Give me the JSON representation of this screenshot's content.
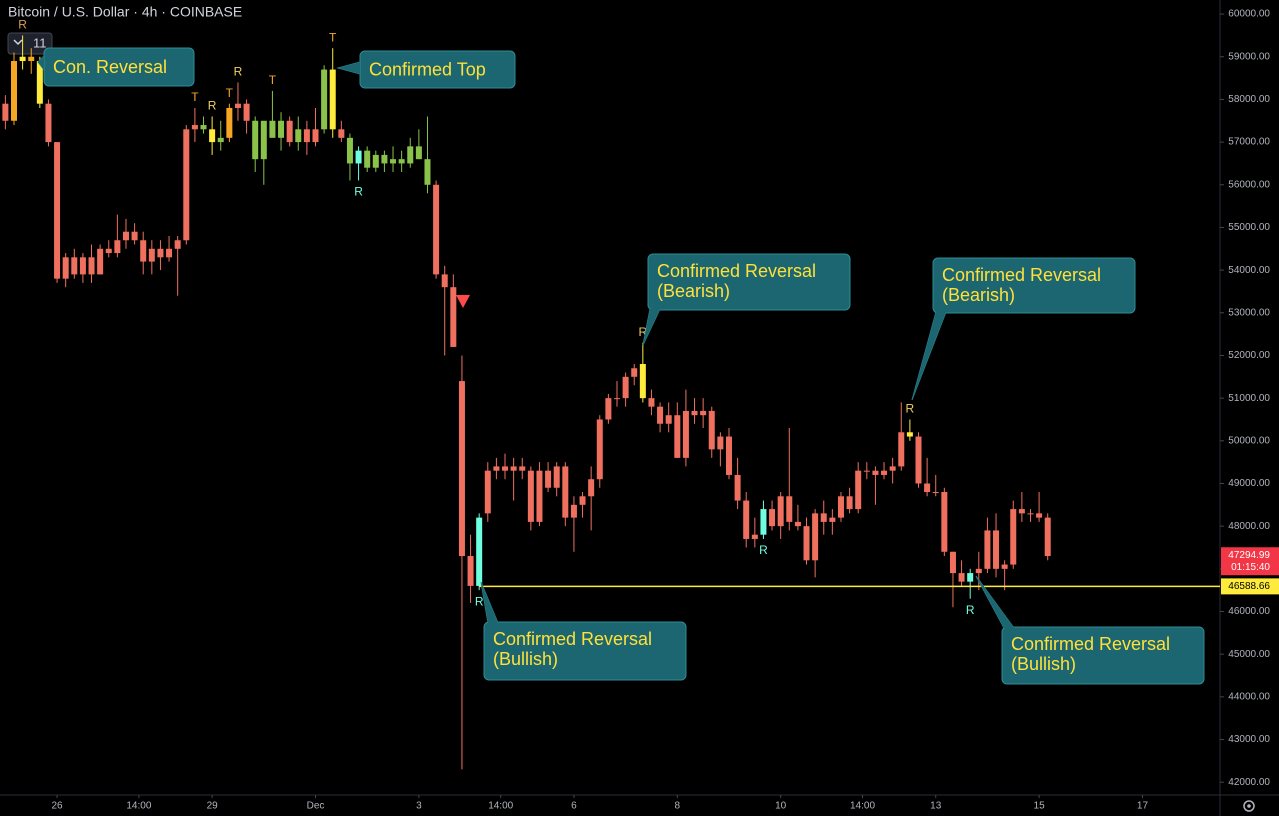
{
  "chart_data": {
    "type": "candlestick",
    "title": "Bitcoin / U.S. Dollar · 4h · COINBASE",
    "indicator_count": "11",
    "x": [
      -24,
      -20,
      -16,
      -12,
      -8,
      -4,
      0,
      4,
      8,
      12,
      16,
      20,
      24,
      28,
      32,
      36,
      40,
      44,
      48,
      52,
      56,
      60,
      64,
      68,
      72,
      76,
      80,
      84,
      88,
      92,
      96,
      100,
      104,
      108,
      112,
      116,
      120,
      124,
      128,
      132,
      136,
      140,
      144,
      148,
      152,
      156,
      160,
      164,
      168,
      172,
      176,
      180,
      184,
      188,
      192,
      196,
      200,
      204,
      208,
      212,
      216,
      220,
      224,
      228,
      232,
      236,
      240,
      244,
      248,
      252,
      256,
      260,
      264,
      268,
      272,
      276,
      280,
      284,
      288,
      292,
      296,
      300,
      304,
      308,
      312,
      316,
      320,
      324,
      328,
      332,
      336,
      340,
      344,
      348,
      352,
      356,
      360,
      364,
      368,
      372,
      376,
      380,
      384,
      388,
      392,
      396,
      400,
      404,
      408,
      412,
      416,
      420,
      424,
      428,
      432,
      436,
      440,
      444,
      448,
      452,
      456,
      460
    ],
    "ohlc": [
      [
        57900,
        58100,
        57300,
        57500
      ],
      [
        57500,
        59100,
        57400,
        58900
      ],
      [
        58900,
        59500,
        58700,
        59000
      ],
      [
        59000,
        59200,
        58600,
        58900
      ],
      [
        58900,
        59000,
        57800,
        57900
      ],
      [
        57900,
        58000,
        56900,
        57000
      ],
      [
        57000,
        57000,
        53700,
        53800
      ],
      [
        53800,
        54400,
        53600,
        54300
      ],
      [
        54300,
        54500,
        53800,
        53900
      ],
      [
        53900,
        54400,
        53700,
        54300
      ],
      [
        54300,
        54600,
        53700,
        53900
      ],
      [
        53900,
        54600,
        53900,
        54500
      ],
      [
        54500,
        54700,
        54300,
        54400
      ],
      [
        54400,
        55300,
        54300,
        54700
      ],
      [
        54700,
        55200,
        54500,
        54900
      ],
      [
        54900,
        55100,
        54600,
        54700
      ],
      [
        54700,
        54900,
        53900,
        54200
      ],
      [
        54200,
        54700,
        53900,
        54500
      ],
      [
        54500,
        54700,
        54000,
        54300
      ],
      [
        54300,
        54800,
        54200,
        54500
      ],
      [
        54500,
        54800,
        53400,
        54700
      ],
      [
        54700,
        57400,
        54600,
        57300
      ],
      [
        57300,
        57800,
        57000,
        57400
      ],
      [
        57400,
        57600,
        57200,
        57300
      ],
      [
        57300,
        57600,
        56700,
        57000
      ],
      [
        57000,
        57500,
        56800,
        57100
      ],
      [
        57100,
        57900,
        57000,
        57800
      ],
      [
        57800,
        58400,
        57500,
        57900
      ],
      [
        57900,
        58000,
        57200,
        57500
      ],
      [
        57500,
        57600,
        56300,
        56600
      ],
      [
        56600,
        57400,
        56000,
        57500
      ],
      [
        57500,
        58200,
        57200,
        57100
      ],
      [
        57100,
        57700,
        56800,
        57500
      ],
      [
        57500,
        57600,
        56900,
        57000
      ],
      [
        57000,
        57600,
        56800,
        57300
      ],
      [
        57300,
        57500,
        56700,
        57000
      ],
      [
        57000,
        57800,
        56900,
        57300
      ],
      [
        57300,
        58800,
        57200,
        58700
      ],
      [
        58700,
        59200,
        57100,
        57300
      ],
      [
        57300,
        57500,
        57000,
        57100
      ],
      [
        57100,
        57200,
        56100,
        56500
      ],
      [
        56500,
        56900,
        56100,
        56800
      ],
      [
        56800,
        56900,
        56300,
        56400
      ],
      [
        56400,
        56800,
        56300,
        56700
      ],
      [
        56700,
        56800,
        56300,
        56500
      ],
      [
        56500,
        56900,
        56300,
        56600
      ],
      [
        56600,
        56800,
        56300,
        56500
      ],
      [
        56500,
        57100,
        56400,
        56900
      ],
      [
        56900,
        57300,
        56600,
        56600
      ],
      [
        56600,
        57600,
        55800,
        56000
      ],
      [
        56000,
        56100,
        53800,
        53900
      ],
      [
        53900,
        54100,
        52000,
        53600
      ],
      [
        53600,
        53900,
        52200,
        52200
      ],
      [
        51400,
        52000,
        42300,
        47300
      ],
      [
        47300,
        47800,
        46200,
        46600
      ],
      [
        46600,
        48300,
        46500,
        48200
      ],
      [
        48300,
        49500,
        48100,
        49300
      ],
      [
        49300,
        49600,
        49100,
        49400
      ],
      [
        49400,
        49700,
        49100,
        49300
      ],
      [
        49300,
        49600,
        48600,
        49400
      ],
      [
        49400,
        49600,
        49100,
        49300
      ],
      [
        49300,
        49400,
        47900,
        48100
      ],
      [
        48100,
        49500,
        48000,
        49300
      ],
      [
        49300,
        49500,
        48800,
        48900
      ],
      [
        48900,
        49500,
        48700,
        49400
      ],
      [
        49400,
        49500,
        48000,
        48200
      ],
      [
        48200,
        48700,
        47400,
        48500
      ],
      [
        48500,
        48800,
        48200,
        48700
      ],
      [
        48700,
        49400,
        47900,
        49100
      ],
      [
        49100,
        50600,
        48900,
        50500
      ],
      [
        50500,
        51100,
        50400,
        51000
      ],
      [
        51000,
        51400,
        50800,
        51000
      ],
      [
        51000,
        51600,
        50800,
        51500
      ],
      [
        51500,
        51800,
        51300,
        51700
      ],
      [
        51800,
        52300,
        50900,
        51000
      ],
      [
        51000,
        51200,
        50600,
        50800
      ],
      [
        50800,
        50900,
        50200,
        50400
      ],
      [
        50400,
        50900,
        50200,
        50600
      ],
      [
        50600,
        50900,
        49600,
        49600
      ],
      [
        49600,
        51200,
        49400,
        50700
      ],
      [
        50700,
        51000,
        50400,
        50600
      ],
      [
        50600,
        51000,
        50300,
        50700
      ],
      [
        50700,
        50800,
        49600,
        49800
      ],
      [
        49800,
        50200,
        49400,
        50100
      ],
      [
        50100,
        50300,
        49100,
        49200
      ],
      [
        49200,
        49600,
        48400,
        48600
      ],
      [
        48600,
        48800,
        47500,
        47700
      ],
      [
        47700,
        48200,
        47500,
        47800
      ],
      [
        47800,
        48600,
        47700,
        48400
      ],
      [
        48400,
        48600,
        47900,
        48000
      ],
      [
        48000,
        48800,
        47700,
        48700
      ],
      [
        48700,
        50300,
        47900,
        48100
      ],
      [
        48100,
        48500,
        47900,
        48000
      ],
      [
        48000,
        48200,
        47100,
        47200
      ],
      [
        47200,
        48400,
        46800,
        48300
      ],
      [
        48300,
        48600,
        47800,
        48100
      ],
      [
        48100,
        48400,
        47800,
        48200
      ],
      [
        48200,
        48800,
        48100,
        48700
      ],
      [
        48700,
        48900,
        48300,
        48400
      ],
      [
        48400,
        49500,
        48300,
        49300
      ],
      [
        49300,
        49500,
        49100,
        49300
      ],
      [
        49300,
        49400,
        48500,
        49200
      ],
      [
        49200,
        49500,
        49100,
        49300
      ],
      [
        49300,
        49600,
        49000,
        49400
      ],
      [
        49400,
        50900,
        49300,
        50200
      ],
      [
        50200,
        50500,
        50000,
        50100
      ],
      [
        50100,
        50200,
        48900,
        49000
      ],
      [
        49000,
        49600,
        48700,
        48800
      ],
      [
        48800,
        49200,
        48700,
        48800
      ],
      [
        48800,
        48900,
        47300,
        47400
      ],
      [
        47400,
        47400,
        46100,
        46900
      ],
      [
        46900,
        47200,
        46600,
        46700
      ],
      [
        46700,
        47000,
        46300,
        46900
      ],
      [
        46900,
        47400,
        46500,
        47000
      ],
      [
        47000,
        48200,
        46900,
        47900
      ],
      [
        47900,
        48300,
        46800,
        47000
      ],
      [
        47000,
        47200,
        46500,
        47100
      ],
      [
        47100,
        48600,
        47000,
        48400
      ],
      [
        48400,
        48800,
        48100,
        48300
      ],
      [
        48300,
        48400,
        48100,
        48300
      ],
      [
        48300,
        48800,
        48100,
        48200
      ],
      [
        48200,
        48300,
        47200,
        47300
      ]
    ],
    "colors": [
      "#f07060",
      "#f5a623",
      "#ffeb3b",
      "#f5a623",
      "#ffeb3b",
      "#f07060",
      "#f07060",
      "#f07060",
      "#f07060",
      "#f07060",
      "#f07060",
      "#f07060",
      "#f07060",
      "#f07060",
      "#f07060",
      "#f07060",
      "#f07060",
      "#f07060",
      "#f07060",
      "#f07060",
      "#f07060",
      "#f07060",
      "#f07060",
      "#8bc34a",
      "#ffeb3b",
      "#8bc34a",
      "#f5a623",
      "#f07060",
      "#f07060",
      "#8bc34a",
      "#8bc34a",
      "#8bc34a",
      "#8bc34a",
      "#f07060",
      "#8bc34a",
      "#f07060",
      "#f07060",
      "#8bc34a",
      "#ffeb3b",
      "#f07060",
      "#8bc34a",
      "#6fffe0",
      "#8bc34a",
      "#8bc34a",
      "#8bc34a",
      "#8bc34a",
      "#8bc34a",
      "#8bc34a",
      "#8bc34a",
      "#8bc34a",
      "#f07060",
      "#f07060",
      "#f07060",
      "#f07060",
      "#f07060",
      "#6fffe0",
      "#f07060",
      "#f07060",
      "#f07060",
      "#f07060",
      "#f07060",
      "#f07060",
      "#f07060",
      "#f07060",
      "#f07060",
      "#f07060",
      "#f07060",
      "#f07060",
      "#f07060",
      "#f07060",
      "#f07060",
      "#f07060",
      "#f07060",
      "#f07060",
      "#ffeb3b",
      "#f07060",
      "#f07060",
      "#f07060",
      "#f07060",
      "#f07060",
      "#f07060",
      "#f07060",
      "#f07060",
      "#f07060",
      "#f07060",
      "#f07060",
      "#f07060",
      "#f07060",
      "#6fffe0",
      "#f07060",
      "#f07060",
      "#f07060",
      "#f07060",
      "#f07060",
      "#f07060",
      "#f07060",
      "#f07060",
      "#f07060",
      "#f07060",
      "#f07060",
      "#f07060",
      "#f07060",
      "#f07060",
      "#f07060",
      "#f07060",
      "#ffeb3b",
      "#f07060",
      "#f07060",
      "#f07060",
      "#f07060",
      "#f07060",
      "#f07060",
      "#6fffe0",
      "#f07060",
      "#f07060",
      "#f07060",
      "#f07060",
      "#f07060",
      "#f07060",
      "#f07060",
      "#f07060",
      "#f07060"
    ],
    "markers": [
      {
        "label": "R",
        "x": -16,
        "position": "above",
        "color": "#d9a050"
      },
      {
        "label": "T",
        "x": 64,
        "position": "above",
        "color": "#f5a623"
      },
      {
        "label": "R",
        "x": 72,
        "position": "above",
        "color": "#f0d060"
      },
      {
        "label": "T",
        "x": 80,
        "position": "above",
        "color": "#f5a623"
      },
      {
        "label": "R",
        "x": 84,
        "position": "above",
        "color": "#f0d060"
      },
      {
        "label": "T",
        "x": 100,
        "position": "above",
        "color": "#f5a623"
      },
      {
        "label": "T",
        "x": 128,
        "position": "above",
        "color": "#f5a623"
      },
      {
        "label": "R",
        "x": 140,
        "position": "below",
        "color": "#6fffe0"
      },
      {
        "label": "R",
        "x": 196,
        "position": "below",
        "color": "#6fffe0"
      },
      {
        "label": "R",
        "x": 272,
        "position": "above",
        "color": "#f0d060"
      },
      {
        "label": "R",
        "x": 328,
        "position": "below",
        "color": "#6fffe0"
      },
      {
        "label": "R",
        "x": 396,
        "position": "above",
        "color": "#f0d060"
      },
      {
        "label": "R",
        "x": 424,
        "position": "below",
        "color": "#6fffe0"
      }
    ],
    "callouts": [
      {
        "lines": [
          "Con. Reversal"
        ]
      },
      {
        "lines": [
          "Confirmed Top"
        ]
      },
      {
        "lines": [
          "Confirmed Reversal",
          "(Bearish)"
        ]
      },
      {
        "lines": [
          "Confirmed Reversal",
          "(Bearish)"
        ]
      },
      {
        "lines": [
          "Confirmed Reversal",
          "(Bullish)"
        ]
      },
      {
        "lines": [
          "Confirmed Reversal",
          "(Bullish)"
        ]
      }
    ],
    "hline": {
      "value": 46588.66,
      "from_x": 196,
      "color": "#ffeb3b"
    },
    "last_price": 47294.99,
    "countdown": "01:15:40",
    "ylim": [
      41700,
      60330
    ],
    "yticks": [
      {
        "value": 42000,
        "label": "42000.00"
      },
      {
        "value": 43000,
        "label": "43000.00"
      },
      {
        "value": 44000,
        "label": "44000.00"
      },
      {
        "value": 45000,
        "label": "45000.00"
      },
      {
        "value": 46000,
        "label": "46000.00"
      },
      {
        "value": 47000,
        "label": "47000.00"
      },
      {
        "value": 48000,
        "label": "48000.00"
      },
      {
        "value": 49000,
        "label": "49000.00"
      },
      {
        "value": 50000,
        "label": "50000.00"
      },
      {
        "value": 51000,
        "label": "51000.00"
      },
      {
        "value": 52000,
        "label": "52000.00"
      },
      {
        "value": 53000,
        "label": "53000.00"
      },
      {
        "value": 54000,
        "label": "54000.00"
      },
      {
        "value": 55000,
        "label": "55000.00"
      },
      {
        "value": 56000,
        "label": "56000.00"
      },
      {
        "value": 57000,
        "label": "57000.00"
      },
      {
        "value": 58000,
        "label": "58000.00"
      },
      {
        "value": 59000,
        "label": "59000.00"
      },
      {
        "value": 60000,
        "label": "60000.00"
      }
    ],
    "xlim": [
      -26.5,
      540
    ],
    "xticks": [
      {
        "value": 0,
        "label": "26"
      },
      {
        "value": 38,
        "label": "14:00"
      },
      {
        "value": 72,
        "label": "29"
      },
      {
        "value": 120,
        "label": "Dec"
      },
      {
        "value": 168,
        "label": "3"
      },
      {
        "value": 206,
        "label": "14:00"
      },
      {
        "value": 240,
        "label": "6"
      },
      {
        "value": 288,
        "label": "8"
      },
      {
        "value": 336,
        "label": "10"
      },
      {
        "value": 374,
        "label": "14:00"
      },
      {
        "value": 408,
        "label": "13"
      },
      {
        "value": 456,
        "label": "15"
      },
      {
        "value": 504,
        "label": "17"
      }
    ]
  }
}
